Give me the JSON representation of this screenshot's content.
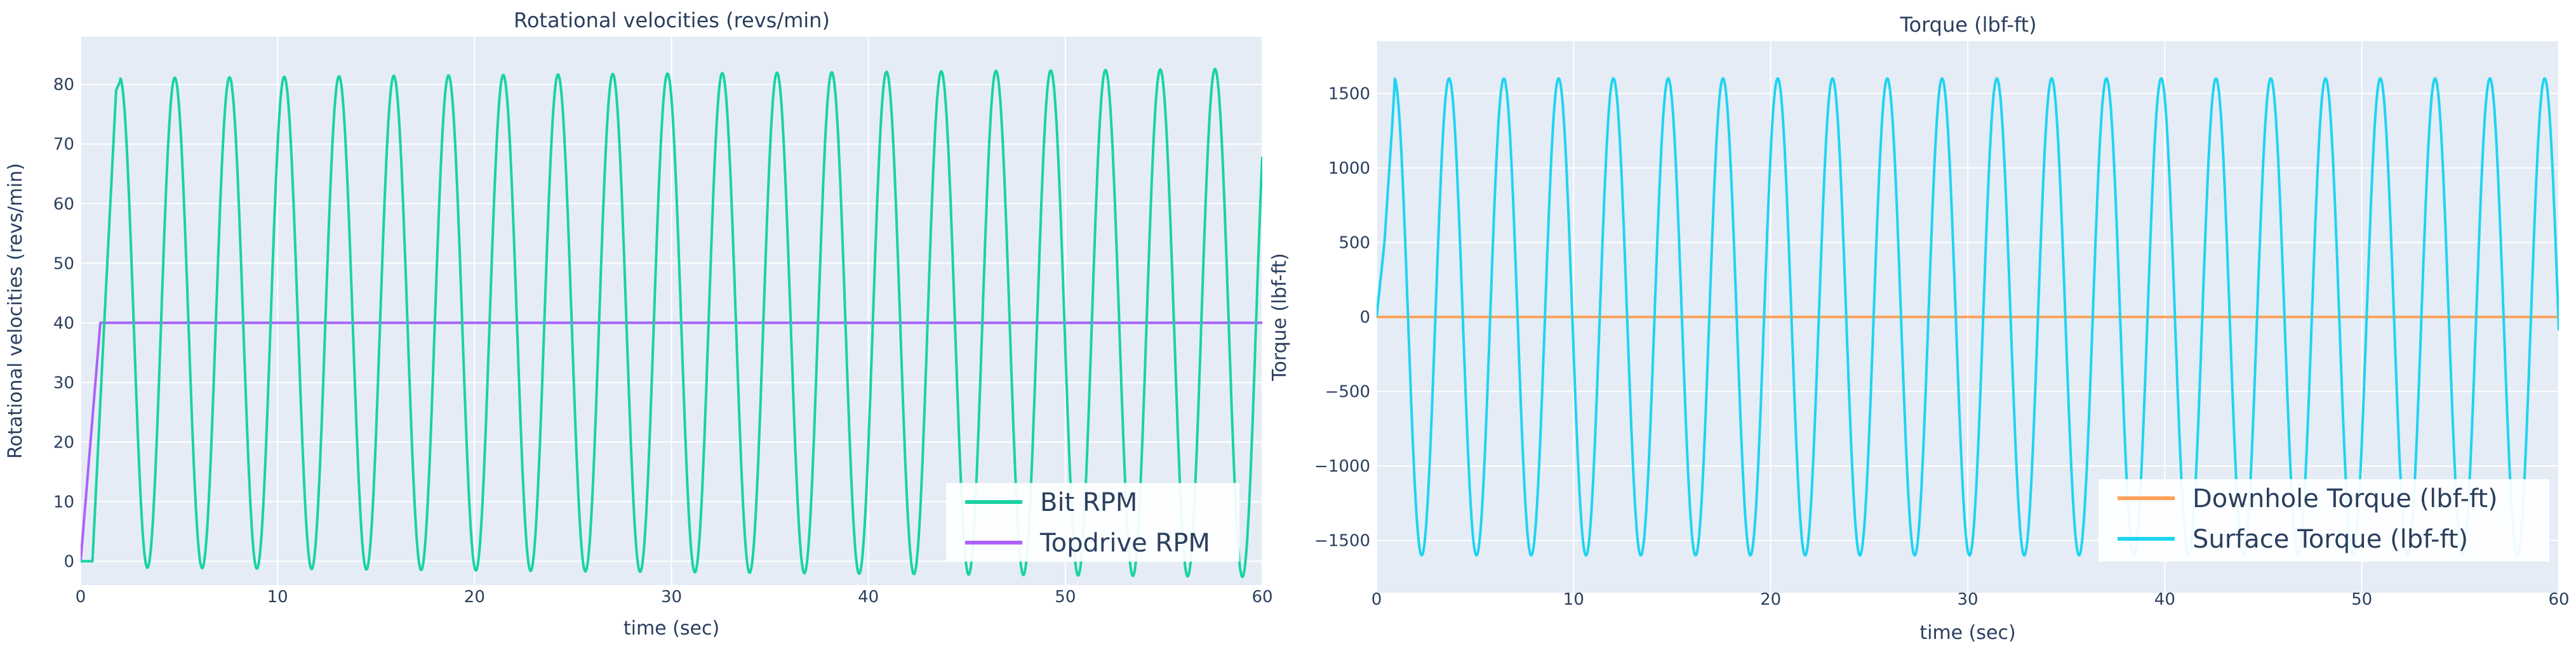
{
  "colors": {
    "plot_bg": "#e5ecf6",
    "grid": "#ffffff",
    "text": "#2a3f5f",
    "bit_rpm": "#19d3a2",
    "topdrive_rpm": "#ab63fa",
    "downhole_torque": "#ffa15a",
    "surface_torque": "#1ed4f0"
  },
  "chart_data": [
    {
      "type": "line",
      "title": "Rotational velocities (revs/min)",
      "xlabel": "time (sec)",
      "ylabel": "Rotational velocities (revs/min)",
      "xlim": [
        0,
        60
      ],
      "ylim": [
        -4,
        88
      ],
      "xticks": [
        "0",
        "10",
        "20",
        "30",
        "40",
        "50",
        "60"
      ],
      "yticks": [
        "0",
        "10",
        "20",
        "30",
        "40",
        "50",
        "60",
        "70",
        "80"
      ],
      "xtick_values": [
        0,
        10,
        20,
        30,
        40,
        50,
        60
      ],
      "ytick_values": [
        0,
        10,
        20,
        30,
        40,
        50,
        60,
        70,
        80
      ],
      "legend_position": "bottom-right",
      "oscillation": {
        "period_sec": 2.78,
        "first_peak_sec": 2.0,
        "amplitude_growth": 0.55
      },
      "series": [
        {
          "name": "Bit RPM",
          "color_key": "bit_rpm",
          "kind": "oscillating",
          "startup": [
            [
              0,
              0
            ],
            [
              0.6,
              0
            ],
            [
              1.2,
              40
            ],
            [
              1.8,
              79
            ],
            [
              2.0,
              80.5
            ]
          ],
          "center": 40,
          "amplitude": 41
        },
        {
          "name": "Topdrive RPM",
          "color_key": "topdrive_rpm",
          "kind": "ramp",
          "points": [
            [
              0,
              0
            ],
            [
              1.0,
              40
            ],
            [
              60,
              40
            ]
          ]
        }
      ]
    },
    {
      "type": "line",
      "title": "Torque (lbf-ft)",
      "xlabel": "time (sec)",
      "ylabel": "Torque (lbf-ft)",
      "xlim": [
        0,
        60
      ],
      "ylim": [
        -1850,
        1850
      ],
      "xticks": [
        "0",
        "10",
        "20",
        "30",
        "40",
        "50",
        "60"
      ],
      "yticks": [
        "−1500",
        "−1000",
        "−500",
        "0",
        "500",
        "1000",
        "1500"
      ],
      "xtick_values": [
        0,
        10,
        20,
        30,
        40,
        50,
        60
      ],
      "ytick_values": [
        -1500,
        -1000,
        -500,
        0,
        500,
        1000,
        1500
      ],
      "legend_position": "bottom-right",
      "oscillation": {
        "period_sec": 2.78,
        "first_peak_sec": 0.9,
        "amplitude_growth": 0.08
      },
      "series": [
        {
          "name": "Downhole Torque (lbf-ft)",
          "color_key": "downhole_torque",
          "kind": "flat",
          "points": [
            [
              0,
              0
            ],
            [
              60,
              0
            ]
          ]
        },
        {
          "name": "Surface Torque (lbf-ft)",
          "color_key": "surface_torque",
          "kind": "oscillating",
          "startup": [
            [
              0,
              0
            ],
            [
              0.4,
              500
            ],
            [
              0.8,
              1300
            ],
            [
              0.9,
              1530
            ]
          ],
          "center": 0,
          "amplitude": 1600
        }
      ]
    }
  ]
}
